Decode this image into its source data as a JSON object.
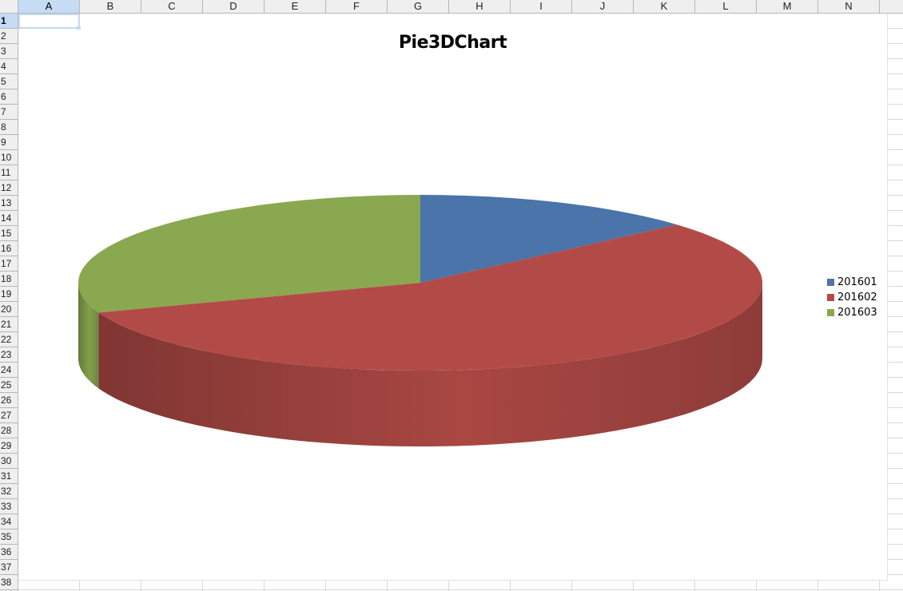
{
  "spreadsheet": {
    "columns": [
      "A",
      "B",
      "C",
      "D",
      "E",
      "F",
      "G",
      "H",
      "I",
      "J",
      "K",
      "L",
      "M",
      "N"
    ],
    "rows": [
      "1",
      "2",
      "3",
      "4",
      "5",
      "6",
      "7",
      "8",
      "9",
      "10",
      "11",
      "12",
      "13",
      "14",
      "15",
      "16",
      "17",
      "18",
      "19",
      "20",
      "21",
      "22",
      "23",
      "24",
      "25",
      "26",
      "27",
      "28",
      "29",
      "30",
      "31",
      "32",
      "33",
      "34",
      "35",
      "36",
      "37",
      "38"
    ],
    "active_column": "A",
    "active_row": "1",
    "selected_cell": "A1"
  },
  "chart_data": {
    "type": "pie",
    "variant": "3d",
    "title": "Pie3DChart",
    "categories": [
      "201601",
      "201602",
      "201603"
    ],
    "values": [
      13.5,
      56.0,
      30.5
    ],
    "colors": [
      "#4a74aa",
      "#b24b47",
      "#8aa84f"
    ],
    "legend_position": "right"
  }
}
